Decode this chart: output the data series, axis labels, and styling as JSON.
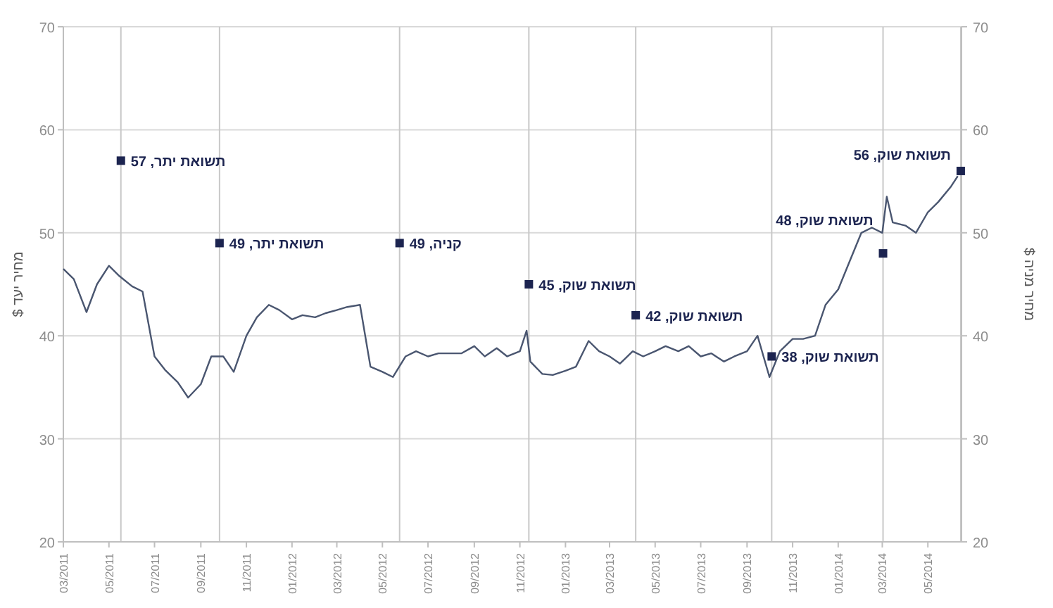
{
  "chart_data": {
    "type": "line",
    "ylabel": "מחיר יעד $",
    "y2label": "מחיר מניה $",
    "xlim": [
      "2011-03-01",
      "2014-06-15"
    ],
    "xticks": [
      {
        "value": "2011-03-01",
        "label": "03/2011"
      },
      {
        "value": "2011-05-01",
        "label": "05/2011"
      },
      {
        "value": "2011-07-01",
        "label": "07/2011"
      },
      {
        "value": "2011-09-01",
        "label": "09/2011"
      },
      {
        "value": "2011-11-01",
        "label": "11/2011"
      },
      {
        "value": "2012-01-01",
        "label": "01/2012"
      },
      {
        "value": "2012-03-01",
        "label": "03/2012"
      },
      {
        "value": "2012-05-01",
        "label": "05/2012"
      },
      {
        "value": "2012-07-01",
        "label": "07/2012"
      },
      {
        "value": "2012-09-01",
        "label": "09/2012"
      },
      {
        "value": "2012-11-01",
        "label": "11/2012"
      },
      {
        "value": "2013-01-01",
        "label": "01/2013"
      },
      {
        "value": "2013-03-01",
        "label": "03/2013"
      },
      {
        "value": "2013-05-01",
        "label": "05/2013"
      },
      {
        "value": "2013-07-01",
        "label": "07/2013"
      },
      {
        "value": "2013-09-01",
        "label": "09/2013"
      },
      {
        "value": "2013-11-01",
        "label": "11/2013"
      },
      {
        "value": "2014-01-01",
        "label": "01/2014"
      },
      {
        "value": "2014-03-01",
        "label": "03/2014"
      },
      {
        "value": "2014-05-01",
        "label": "05/2014"
      }
    ],
    "ylim": [
      20,
      70
    ],
    "yticks": [
      20,
      30,
      40,
      50,
      60,
      70
    ],
    "y2lim": [
      20,
      70
    ],
    "y2ticks": [
      20,
      30,
      40,
      50,
      60,
      70
    ],
    "grid": "y",
    "series": [
      {
        "color": "#4a5670",
        "line_style": "solid",
        "x": [
          "2011-03-01",
          "2011-03-15",
          "2011-04-01",
          "2011-04-15",
          "2011-05-01",
          "2011-05-15",
          "2011-06-01",
          "2011-06-15",
          "2011-07-01",
          "2011-07-15",
          "2011-08-01",
          "2011-08-15",
          "2011-09-01",
          "2011-09-15",
          "2011-10-01",
          "2011-10-15",
          "2011-11-01",
          "2011-11-15",
          "2011-12-01",
          "2011-12-15",
          "2012-01-01",
          "2012-01-15",
          "2012-02-01",
          "2012-02-15",
          "2012-03-01",
          "2012-03-15",
          "2012-04-01",
          "2012-04-15",
          "2012-05-01",
          "2012-05-15",
          "2012-06-01",
          "2012-06-15",
          "2012-07-01",
          "2012-07-15",
          "2012-08-01",
          "2012-08-15",
          "2012-09-01",
          "2012-09-15",
          "2012-10-01",
          "2012-10-15",
          "2012-11-01",
          "2012-11-10",
          "2012-11-15",
          "2012-12-01",
          "2012-12-15",
          "2013-01-01",
          "2013-01-15",
          "2013-02-01",
          "2013-02-15",
          "2013-03-01",
          "2013-03-15",
          "2013-04-01",
          "2013-04-15",
          "2013-05-01",
          "2013-05-15",
          "2013-06-01",
          "2013-06-15",
          "2013-07-01",
          "2013-07-15",
          "2013-08-01",
          "2013-08-15",
          "2013-09-01",
          "2013-09-15",
          "2013-10-01",
          "2013-10-15",
          "2013-11-01",
          "2013-11-15",
          "2013-12-01",
          "2013-12-15",
          "2014-01-01",
          "2014-01-15",
          "2014-02-01",
          "2014-02-15",
          "2014-03-01",
          "2014-03-07",
          "2014-03-15",
          "2014-04-01",
          "2014-04-15",
          "2014-05-01",
          "2014-05-15",
          "2014-06-01",
          "2014-06-10"
        ],
        "values": [
          46.5,
          45.5,
          42.3,
          45,
          46.8,
          45.8,
          44.8,
          44.3,
          38,
          36.7,
          35.5,
          34,
          35.3,
          38,
          38,
          36.5,
          40,
          41.8,
          43,
          42.5,
          41.6,
          42,
          41.8,
          42.2,
          42.5,
          42.8,
          43,
          37,
          36.5,
          36,
          38,
          38.5,
          38,
          38.3,
          38.3,
          38.3,
          39,
          38,
          38.8,
          38,
          38.5,
          40.5,
          37.5,
          36.3,
          36.2,
          36.6,
          37,
          39.5,
          38.5,
          38,
          37.3,
          38.5,
          38,
          38.5,
          39,
          38.5,
          39,
          38,
          38.3,
          37.5,
          38,
          38.5,
          40,
          36,
          38.5,
          39.7,
          39.7,
          40,
          43,
          44.5,
          47,
          50,
          50.5,
          50,
          53.5,
          51,
          50.7,
          50,
          52,
          53,
          54.5,
          55.5
        ]
      },
      {
        "type": "scatter",
        "color": "#1c2450",
        "marker": "square",
        "x": [
          "2011-05-17",
          "2011-09-26",
          "2012-05-24",
          "2012-11-13",
          "2013-04-05",
          "2013-10-04",
          "2014-03-02",
          "2014-06-14"
        ],
        "values": [
          57,
          49,
          49,
          45,
          42,
          38,
          48,
          56
        ],
        "value_labels": [
          "תשואת יתר, 57",
          "תשואת יתר, 49",
          "קניה, 49",
          "תשואת שוק, 45",
          "תשואת שוק, 42",
          "תשואת שוק, 38",
          "תשואת שוק, 48",
          "תשואת שוק, 56"
        ]
      }
    ],
    "ref_lines": [
      {
        "axis": "x",
        "value": "2011-05-17",
        "color": "#c8c8c8"
      },
      {
        "axis": "x",
        "value": "2011-09-26",
        "color": "#c8c8c8"
      },
      {
        "axis": "x",
        "value": "2012-05-24",
        "color": "#c8c8c8"
      },
      {
        "axis": "x",
        "value": "2012-11-13",
        "color": "#c8c8c8"
      },
      {
        "axis": "x",
        "value": "2013-04-05",
        "color": "#c8c8c8"
      },
      {
        "axis": "x",
        "value": "2013-10-04",
        "color": "#c8c8c8"
      },
      {
        "axis": "x",
        "value": "2014-03-02",
        "color": "#c8c8c8"
      },
      {
        "axis": "x",
        "value": "2014-06-14",
        "color": "#c8c8c8"
      }
    ]
  }
}
